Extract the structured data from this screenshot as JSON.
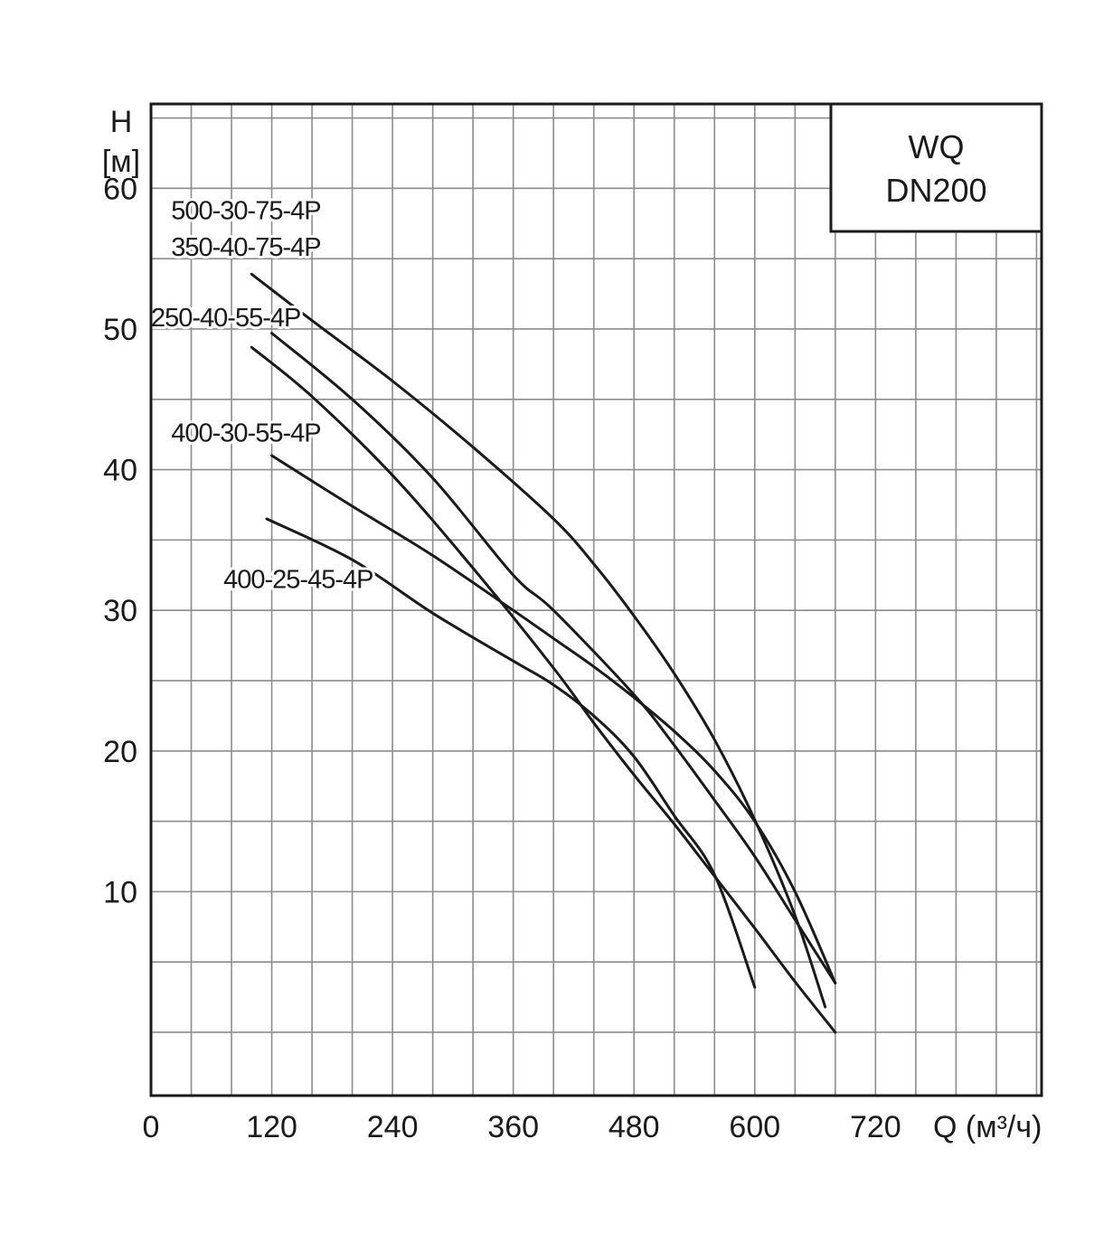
{
  "chart_data": {
    "type": "line",
    "badge": {
      "line1": "WQ",
      "line2": "DN200"
    },
    "y_axis": {
      "label_line1": "H",
      "label_line2": "[м]",
      "ylim": [
        -4.5,
        66
      ],
      "ticks": [
        10,
        20,
        30,
        40,
        50,
        60
      ]
    },
    "x_axis": {
      "label": "Q (м³/ч)",
      "xlim": [
        0,
        885
      ],
      "ticks": [
        0,
        120,
        240,
        360,
        480,
        600,
        720
      ]
    },
    "grid": true,
    "series": [
      {
        "name": "500-30-75-4P",
        "x": [
          100,
          160,
          240,
          320,
          400,
          440,
          480,
          520,
          560,
          600,
          640,
          670
        ],
        "y": [
          53.9,
          50.6,
          46.3,
          41.6,
          36.5,
          33.3,
          29.6,
          25.5,
          20.8,
          15.1,
          8.3,
          1.8
        ]
      },
      {
        "name": "350-40-75-4P",
        "x": [
          120,
          200,
          280,
          360,
          400,
          480,
          520,
          560,
          600,
          640,
          680
        ],
        "y": [
          49.7,
          45.0,
          39.4,
          32.5,
          30.0,
          24.0,
          20.4,
          16.5,
          12.5,
          8.0,
          3.5
        ]
      },
      {
        "name": "250-40-55-4P",
        "x": [
          100,
          160,
          240,
          320,
          400,
          440,
          480,
          520,
          560,
          600,
          640,
          680
        ],
        "y": [
          48.7,
          45.2,
          39.6,
          33.0,
          25.9,
          22.0,
          18.3,
          14.8,
          11.1,
          7.4,
          3.6,
          0.0
        ]
      },
      {
        "name": "400-30-55-4P",
        "x": [
          120,
          200,
          280,
          360,
          400,
          440,
          480,
          520,
          560,
          600,
          640,
          680
        ],
        "y": [
          41.0,
          37.4,
          33.9,
          30.0,
          28.0,
          26.0,
          23.8,
          21.4,
          18.6,
          15.0,
          10.0,
          3.5
        ]
      },
      {
        "name": "400-25-45-4P",
        "x": [
          115,
          200,
          280,
          360,
          400,
          440,
          480,
          520,
          560,
          600
        ],
        "y": [
          36.5,
          33.6,
          29.8,
          26.4,
          24.7,
          22.5,
          19.6,
          15.4,
          11.2,
          3.2
        ]
      }
    ],
    "curve_labels": [
      {
        "text": "500-30-75-4P",
        "series": "500-30-75-4P",
        "x_at": 20,
        "y_at": 57.8
      },
      {
        "text": "350-40-75-4P",
        "series": "350-40-75-4P",
        "x_at": 20,
        "y_at": 55.2
      },
      {
        "text": "250-40-55-4P",
        "series": "250-40-55-4P",
        "x_at": 0,
        "y_at": 50.2
      },
      {
        "text": "400-30-55-4P",
        "series": "400-30-55-4P",
        "x_at": 20,
        "y_at": 42.0
      },
      {
        "text": "400-25-45-4P",
        "series": "400-25-45-4P",
        "x_at": 72,
        "y_at": 31.6
      }
    ]
  }
}
